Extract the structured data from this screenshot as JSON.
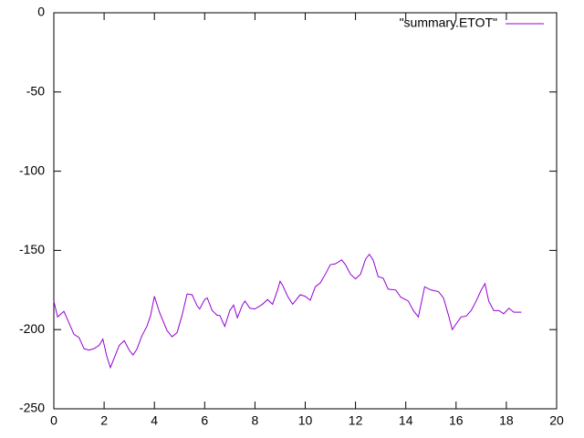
{
  "chart_data": {
    "type": "line",
    "x": [
      0,
      0.15,
      0.4,
      0.5,
      0.8,
      1.0,
      1.2,
      1.4,
      1.6,
      1.8,
      1.95,
      2.1,
      2.25,
      2.4,
      2.6,
      2.8,
      3.0,
      3.15,
      3.3,
      3.5,
      3.7,
      3.85,
      4.0,
      4.2,
      4.5,
      4.7,
      4.9,
      5.1,
      5.3,
      5.5,
      5.7,
      5.8,
      6.0,
      6.1,
      6.3,
      6.5,
      6.6,
      6.8,
      7.0,
      7.15,
      7.3,
      7.5,
      7.6,
      7.8,
      8.0,
      8.3,
      8.5,
      8.7,
      8.9,
      9.0,
      9.1,
      9.3,
      9.5,
      9.8,
      10.0,
      10.2,
      10.4,
      10.6,
      10.8,
      11.0,
      11.2,
      11.45,
      11.6,
      11.8,
      12.0,
      12.2,
      12.4,
      12.55,
      12.7,
      12.9,
      13.1,
      13.3,
      13.6,
      13.8,
      14.1,
      14.3,
      14.5,
      14.75,
      15.0,
      15.3,
      15.5,
      15.7,
      15.85,
      16.0,
      16.2,
      16.4,
      16.6,
      16.8,
      17.0,
      17.15,
      17.3,
      17.5,
      17.7,
      17.9,
      18.1,
      18.3,
      18.6
    ],
    "series": [
      {
        "name": "\"summary.ETOT\"",
        "color": "#9400d3",
        "values": [
          -182,
          -192,
          -188.5,
          -192,
          -203,
          -205,
          -212,
          -213,
          -212,
          -210,
          -206,
          -216.5,
          -224,
          -218,
          -210,
          -207,
          -213,
          -216,
          -212.5,
          -204,
          -198,
          -191,
          -179,
          -189,
          -200.5,
          -204.5,
          -202,
          -191,
          -177.5,
          -178,
          -185,
          -187,
          -181,
          -180,
          -188,
          -191,
          -191,
          -198,
          -188,
          -184.5,
          -192.5,
          -184.5,
          -182,
          -186.5,
          -187,
          -184,
          -181,
          -184,
          -175,
          -169.5,
          -172,
          -179,
          -184,
          -178,
          -179,
          -181.5,
          -173,
          -170.5,
          -165,
          -159,
          -158.5,
          -156,
          -159,
          -165,
          -168,
          -165,
          -155.5,
          -152.5,
          -156,
          -166.5,
          -167.5,
          -174.5,
          -175,
          -179.5,
          -182,
          -188,
          -192,
          -173,
          -175,
          -176,
          -180,
          -191,
          -200,
          -196.5,
          -192,
          -191.5,
          -188,
          -182,
          -175,
          -171,
          -182,
          -188,
          -188,
          -190,
          -186.5,
          -189,
          -189
        ]
      }
    ],
    "xlim": [
      0,
      20
    ],
    "ylim": [
      -250,
      0
    ],
    "xticks": [
      0,
      2,
      4,
      6,
      8,
      10,
      12,
      14,
      16,
      18,
      20
    ],
    "yticks": [
      -250,
      -200,
      -150,
      -100,
      -50,
      0
    ],
    "legend": "top-right"
  }
}
